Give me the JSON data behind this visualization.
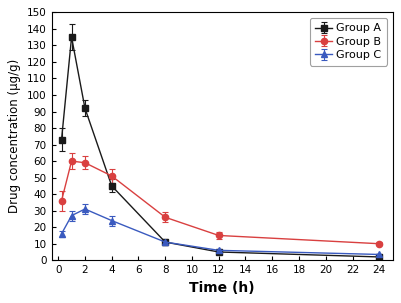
{
  "time_A": [
    0.25,
    1,
    2,
    4,
    8,
    12,
    24
  ],
  "values_A": [
    73,
    135,
    92,
    45,
    11,
    5,
    2
  ],
  "yerr_A": [
    7,
    8,
    5,
    4,
    2,
    1,
    0.5
  ],
  "time_B": [
    0.25,
    1,
    2,
    4,
    8,
    12,
    24
  ],
  "values_B": [
    36,
    60,
    59,
    51,
    26,
    15,
    10
  ],
  "yerr_B": [
    6,
    5,
    4,
    4,
    3,
    2,
    1
  ],
  "time_C": [
    0.25,
    1,
    2,
    4,
    8,
    12,
    24
  ],
  "values_C": [
    16,
    27,
    31,
    24,
    11,
    6,
    3.5
  ],
  "yerr_C": [
    2,
    3,
    3,
    3,
    1.5,
    1,
    0.5
  ],
  "color_A": "#1a1a1a",
  "color_B": "#d94040",
  "color_C": "#3a5abf",
  "xlabel": "Time (h)",
  "ylabel": "Drug concentration (µg/g)",
  "label_A": "Group A",
  "label_B": "Group B",
  "label_C": "Group C",
  "ylim": [
    0,
    150
  ],
  "xlim": [
    -0.5,
    25
  ],
  "xticks": [
    0,
    2,
    4,
    6,
    8,
    10,
    12,
    14,
    16,
    18,
    20,
    22,
    24
  ],
  "yticks": [
    0,
    10,
    20,
    30,
    40,
    50,
    60,
    70,
    80,
    90,
    100,
    110,
    120,
    130,
    140,
    150
  ]
}
